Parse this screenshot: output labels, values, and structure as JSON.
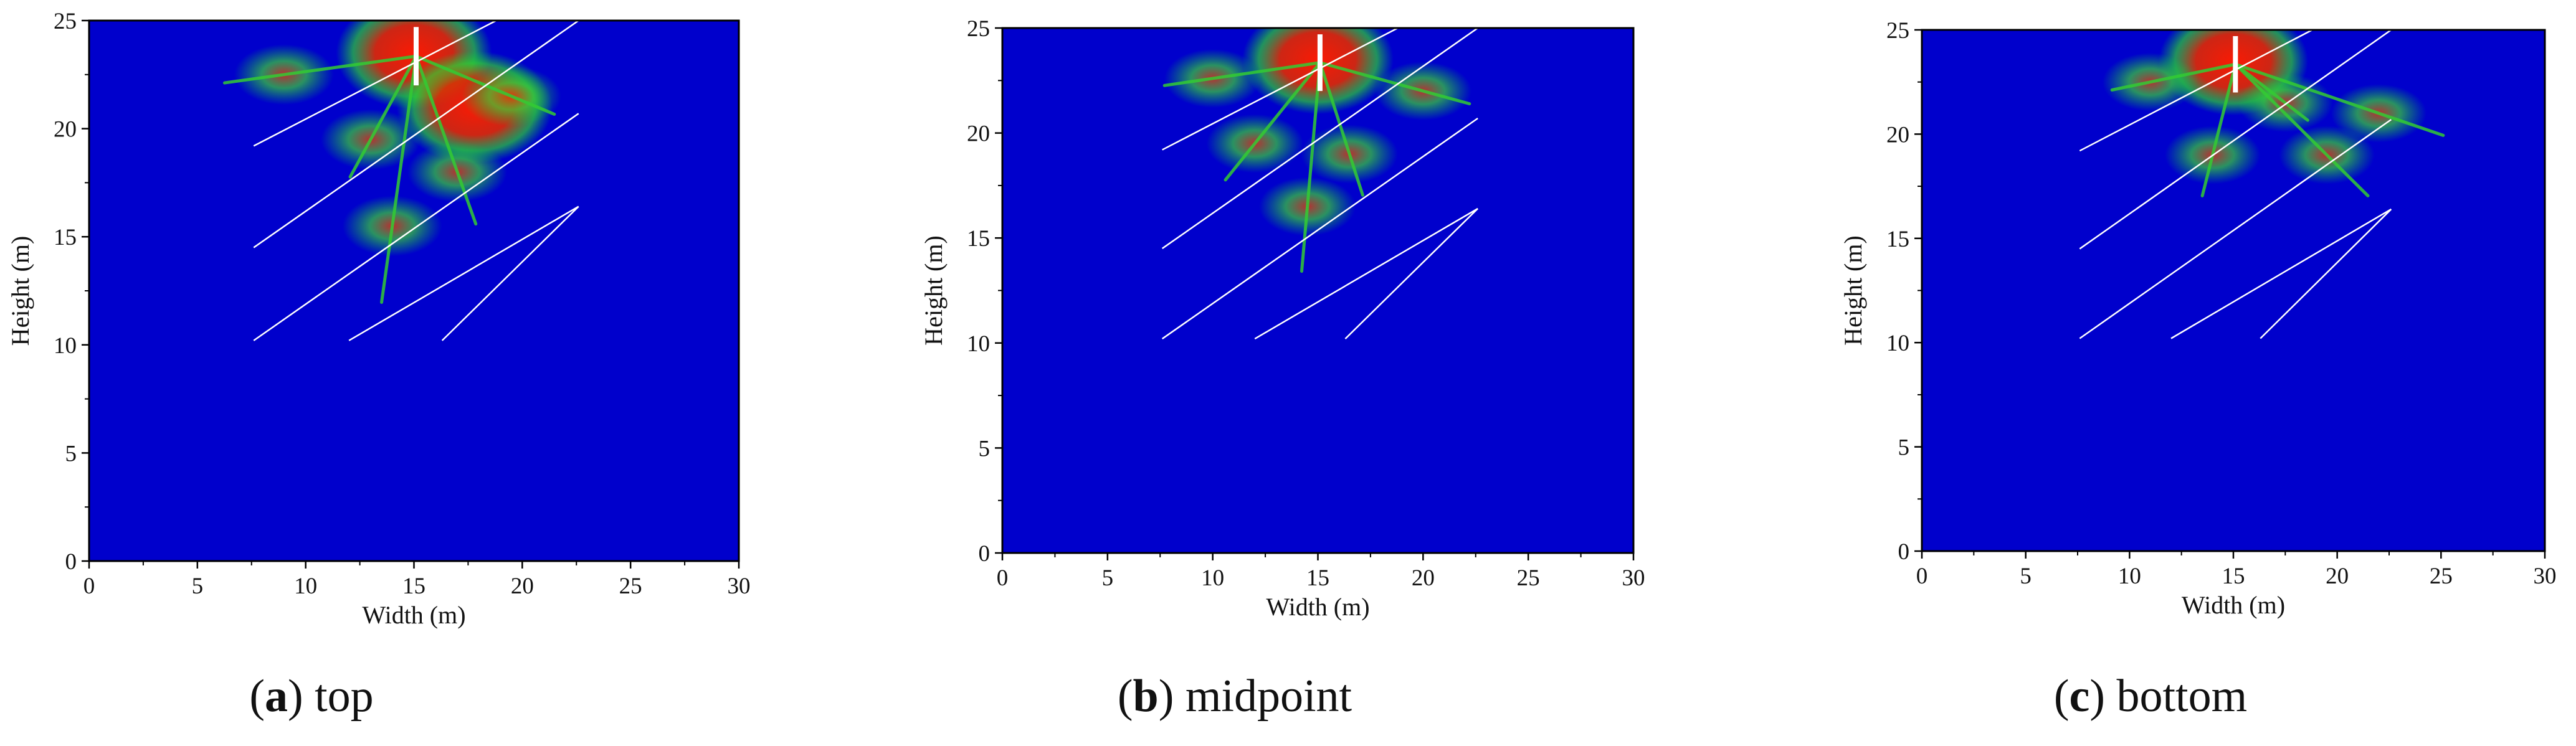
{
  "chart_data": [
    {
      "type": "heatmap",
      "caption_letter": "a",
      "caption_text": "top",
      "xlabel": "Width (m)",
      "ylabel": "Height (m)",
      "xlim": [
        0,
        30
      ],
      "ylim": [
        0,
        25
      ],
      "xticks": [
        0,
        5,
        10,
        15,
        20,
        25,
        30
      ],
      "yticks": [
        0,
        5,
        10,
        15,
        20,
        25
      ],
      "background_color": "#0000CC",
      "grid": false,
      "joint_lines": [
        {
          "x": [
            7.6,
            18.8
          ],
          "y": [
            19.2,
            25
          ]
        },
        {
          "x": [
            7.6,
            22.6
          ],
          "y": [
            14.5,
            25
          ]
        },
        {
          "x": [
            7.6,
            22.6
          ],
          "y": [
            10.2,
            20.7
          ]
        },
        {
          "x": [
            12,
            22.6
          ],
          "y": [
            10.2,
            16.4
          ]
        },
        {
          "x": [
            16.3,
            22.6
          ],
          "y": [
            10.2,
            16.4
          ]
        }
      ],
      "damage_zones": [
        {
          "x": 15,
          "y": 23.5,
          "intensity": "high"
        },
        {
          "x": 17.8,
          "y": 21,
          "intensity": "high"
        },
        {
          "x": 9,
          "y": 22.5,
          "intensity": "medium"
        },
        {
          "x": 13,
          "y": 19.5,
          "intensity": "medium"
        },
        {
          "x": 17,
          "y": 18,
          "intensity": "medium"
        },
        {
          "x": 14,
          "y": 15.5,
          "intensity": "medium"
        },
        {
          "x": 19.5,
          "y": 21.5,
          "intensity": "medium"
        }
      ],
      "borehole": {
        "x": 15.1,
        "y_top": 24.7,
        "y_bottom": 22
      }
    },
    {
      "type": "heatmap",
      "caption_letter": "b",
      "caption_text": "midpoint",
      "xlabel": "Width (m)",
      "ylabel": "Height (m)",
      "xlim": [
        0,
        30
      ],
      "ylim": [
        0,
        25
      ],
      "xticks": [
        0,
        5,
        10,
        15,
        20,
        25,
        30
      ],
      "yticks": [
        0,
        5,
        10,
        15,
        20,
        25
      ],
      "background_color": "#0000CC",
      "grid": false,
      "joint_lines": [
        {
          "x": [
            7.6,
            18.8
          ],
          "y": [
            19.2,
            25
          ]
        },
        {
          "x": [
            7.6,
            22.6
          ],
          "y": [
            14.5,
            25
          ]
        },
        {
          "x": [
            7.6,
            22.6
          ],
          "y": [
            10.2,
            20.7
          ]
        },
        {
          "x": [
            12,
            22.6
          ],
          "y": [
            10.2,
            16.4
          ]
        },
        {
          "x": [
            16.3,
            22.6
          ],
          "y": [
            10.2,
            16.4
          ]
        }
      ],
      "damage_zones": [
        {
          "x": 15,
          "y": 23.5,
          "intensity": "high"
        },
        {
          "x": 10,
          "y": 22.6,
          "intensity": "medium"
        },
        {
          "x": 12,
          "y": 19.5,
          "intensity": "medium"
        },
        {
          "x": 16.5,
          "y": 19,
          "intensity": "medium"
        },
        {
          "x": 14.5,
          "y": 16.5,
          "intensity": "medium"
        },
        {
          "x": 20,
          "y": 22,
          "intensity": "medium"
        }
      ],
      "borehole": {
        "x": 15.1,
        "y_top": 24.7,
        "y_bottom": 22
      }
    },
    {
      "type": "heatmap",
      "caption_letter": "c",
      "caption_text": "bottom",
      "xlabel": "Width (m)",
      "ylabel": "Height (m)",
      "xlim": [
        0,
        30
      ],
      "ylim": [
        0,
        25
      ],
      "xticks": [
        0,
        5,
        10,
        15,
        20,
        25,
        30
      ],
      "yticks": [
        0,
        5,
        10,
        15,
        20,
        25
      ],
      "background_color": "#0000CC",
      "grid": false,
      "joint_lines": [
        {
          "x": [
            7.6,
            18.8
          ],
          "y": [
            19.2,
            25
          ]
        },
        {
          "x": [
            7.6,
            22.6
          ],
          "y": [
            14.5,
            25
          ]
        },
        {
          "x": [
            7.6,
            22.6
          ],
          "y": [
            10.2,
            20.7
          ]
        },
        {
          "x": [
            12,
            22.6
          ],
          "y": [
            10.2,
            16.4
          ]
        },
        {
          "x": [
            16.3,
            22.6
          ],
          "y": [
            10.2,
            16.4
          ]
        }
      ],
      "damage_zones": [
        {
          "x": 15,
          "y": 23.5,
          "intensity": "high"
        },
        {
          "x": 11,
          "y": 22.5,
          "intensity": "medium"
        },
        {
          "x": 17.5,
          "y": 21.5,
          "intensity": "medium"
        },
        {
          "x": 14,
          "y": 19,
          "intensity": "medium"
        },
        {
          "x": 19.5,
          "y": 19,
          "intensity": "medium"
        },
        {
          "x": 22,
          "y": 21,
          "intensity": "medium"
        }
      ],
      "borehole": {
        "x": 15.1,
        "y_top": 24.7,
        "y_bottom": 22
      }
    }
  ]
}
